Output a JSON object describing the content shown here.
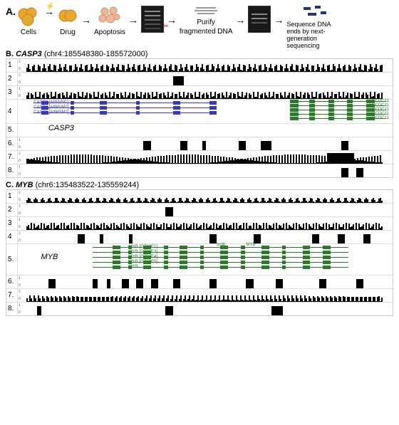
{
  "panelA": {
    "label": "A.",
    "steps": {
      "cells": "Cells",
      "drug": "Drug",
      "apoptosis": "Apoptosis",
      "purify_title": "Purify",
      "purify_sub": "fragmented DNA",
      "seq": "Sequence DNA ends by next-generation sequencing"
    },
    "colors": {
      "cell": "#e6a830",
      "drug": "#e6a830",
      "apop": "#f0b898",
      "gel": "#1a1a1a",
      "seqbox": "#1e3a6e"
    }
  },
  "panelB": {
    "label": "B.",
    "gene": "CASP3",
    "coords": "(chr4:185548380-185572000)",
    "geneLabel": "CASP3",
    "transcripts": {
      "blue": [
        "CASP3 [A6NVM1]",
        "CASP3 [A8MVM2]",
        "CASP3 [A8MSM2]"
      ],
      "green": [
        "CCDC11",
        "CCDC11",
        "CCDC11",
        "CCDC11",
        "CCDC11"
      ]
    },
    "trackNums": [
      "1",
      "2",
      "3",
      "4",
      "5",
      "6",
      "7",
      "8"
    ],
    "colors": {
      "blue": "#3838b8",
      "green": "#2a7a2a",
      "peak": "#000000"
    }
  },
  "panelC": {
    "label": "C.",
    "gene": "MYB",
    "coords": "(chr6:135483522-135559244)",
    "geneLabel": "MYB",
    "transcripts": {
      "green": [
        "MYB [G708E1]",
        "MYB [G708E3]",
        "MYB [G708E4]",
        "MYB [G708E5]",
        "MYB"
      ]
    },
    "trackNums": [
      "1",
      "2",
      "3",
      "4",
      "5",
      "6",
      "7",
      "8"
    ],
    "colors": {
      "green": "#2a7a2a",
      "peak": "#000000"
    }
  }
}
